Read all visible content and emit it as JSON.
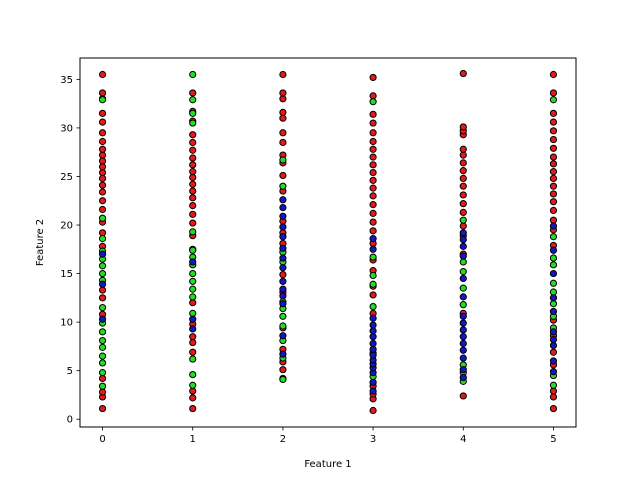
{
  "chart_data": {
    "type": "scatter",
    "title": "",
    "xlabel": "Feature 1",
    "ylabel": "Feature 2",
    "xlim": [
      -0.25,
      5.25
    ],
    "ylim": [
      -0.8,
      37.2
    ],
    "xticks": [
      0,
      1,
      2,
      3,
      4,
      5
    ],
    "yticks": [
      0,
      5,
      10,
      15,
      20,
      25,
      30,
      35
    ],
    "grid": false,
    "legend": "none",
    "marker_edge_color": "#000000",
    "series": [
      {
        "color": "#e31a1c",
        "points": [
          [
            0,
            1.1
          ],
          [
            0,
            2.3
          ],
          [
            0,
            2.8
          ],
          [
            0,
            4.2
          ],
          [
            0,
            10.8
          ],
          [
            0,
            12.5
          ],
          [
            0,
            13.3
          ],
          [
            0,
            17.8
          ],
          [
            0,
            19.2
          ],
          [
            0,
            20.3
          ],
          [
            0,
            21.6
          ],
          [
            0,
            22.5
          ],
          [
            0,
            23.4
          ],
          [
            0,
            24.1
          ],
          [
            0,
            24.8
          ],
          [
            0,
            25.4
          ],
          [
            0,
            26.0
          ],
          [
            0,
            26.6
          ],
          [
            0,
            27.2
          ],
          [
            0,
            27.8
          ],
          [
            0,
            28.6
          ],
          [
            0,
            29.5
          ],
          [
            0,
            30.6
          ],
          [
            0,
            31.5
          ],
          [
            0,
            33.0
          ],
          [
            0,
            33.6
          ],
          [
            0,
            35.5
          ],
          [
            1,
            1.1
          ],
          [
            1,
            2.2
          ],
          [
            1,
            2.9
          ],
          [
            1,
            6.9
          ],
          [
            1,
            7.9
          ],
          [
            1,
            8.5
          ],
          [
            1,
            9.8
          ],
          [
            1,
            12.0
          ],
          [
            1,
            17.5
          ],
          [
            1,
            18.9
          ],
          [
            1,
            20.2
          ],
          [
            1,
            21.1
          ],
          [
            1,
            22.0
          ],
          [
            1,
            22.8
          ],
          [
            1,
            23.5
          ],
          [
            1,
            24.2
          ],
          [
            1,
            24.9
          ],
          [
            1,
            25.5
          ],
          [
            1,
            26.2
          ],
          [
            1,
            26.9
          ],
          [
            1,
            27.7
          ],
          [
            1,
            28.5
          ],
          [
            1,
            29.3
          ],
          [
            1,
            30.7
          ],
          [
            1,
            31.7
          ],
          [
            1,
            33.6
          ],
          [
            2,
            4.2
          ],
          [
            2,
            5.1
          ],
          [
            2,
            5.9
          ],
          [
            2,
            7.2
          ],
          [
            2,
            9.4
          ],
          [
            2,
            13.1
          ],
          [
            2,
            14.9
          ],
          [
            2,
            18.1
          ],
          [
            2,
            19.2
          ],
          [
            2,
            20.4
          ],
          [
            2,
            23.5
          ],
          [
            2,
            25.1
          ],
          [
            2,
            26.4
          ],
          [
            2,
            27.2
          ],
          [
            2,
            28.5
          ],
          [
            2,
            29.5
          ],
          [
            2,
            31.0
          ],
          [
            2,
            31.6
          ],
          [
            2,
            33.0
          ],
          [
            2,
            33.6
          ],
          [
            2,
            35.5
          ],
          [
            3,
            0.9
          ],
          [
            3,
            2.1
          ],
          [
            3,
            2.6
          ],
          [
            3,
            3.4
          ],
          [
            3,
            10.9
          ],
          [
            3,
            12.8
          ],
          [
            3,
            13.7
          ],
          [
            3,
            15.3
          ],
          [
            3,
            16.4
          ],
          [
            3,
            18.1
          ],
          [
            3,
            19.4
          ],
          [
            3,
            20.3
          ],
          [
            3,
            21.2
          ],
          [
            3,
            22.1
          ],
          [
            3,
            23.0
          ],
          [
            3,
            23.8
          ],
          [
            3,
            24.6
          ],
          [
            3,
            25.4
          ],
          [
            3,
            26.2
          ],
          [
            3,
            27.0
          ],
          [
            3,
            27.8
          ],
          [
            3,
            28.6
          ],
          [
            3,
            29.5
          ],
          [
            3,
            30.5
          ],
          [
            3,
            31.4
          ],
          [
            3,
            33.3
          ],
          [
            3,
            35.2
          ],
          [
            4,
            2.4
          ],
          [
            4,
            10.9
          ],
          [
            4,
            17.0
          ],
          [
            4,
            18.9
          ],
          [
            4,
            19.9
          ],
          [
            4,
            21.3
          ],
          [
            4,
            22.2
          ],
          [
            4,
            23.1
          ],
          [
            4,
            24.0
          ],
          [
            4,
            24.8
          ],
          [
            4,
            25.6
          ],
          [
            4,
            26.4
          ],
          [
            4,
            27.2
          ],
          [
            4,
            27.8
          ],
          [
            4,
            29.3
          ],
          [
            4,
            29.7
          ],
          [
            4,
            30.1
          ],
          [
            4,
            35.6
          ],
          [
            5,
            1.1
          ],
          [
            5,
            2.3
          ],
          [
            5,
            2.9
          ],
          [
            5,
            5.6
          ],
          [
            5,
            6.9
          ],
          [
            5,
            8.6
          ],
          [
            5,
            10.2
          ],
          [
            5,
            17.9
          ],
          [
            5,
            19.5
          ],
          [
            5,
            20.5
          ],
          [
            5,
            21.5
          ],
          [
            5,
            22.4
          ],
          [
            5,
            23.2
          ],
          [
            5,
            24.0
          ],
          [
            5,
            24.8
          ],
          [
            5,
            25.5
          ],
          [
            5,
            26.3
          ],
          [
            5,
            27.0
          ],
          [
            5,
            27.9
          ],
          [
            5,
            28.8
          ],
          [
            5,
            29.7
          ],
          [
            5,
            30.6
          ],
          [
            5,
            31.5
          ],
          [
            5,
            33.6
          ],
          [
            5,
            35.5
          ]
        ]
      },
      {
        "color": "#22dd22",
        "points": [
          [
            0,
            3.4
          ],
          [
            0,
            4.8
          ],
          [
            0,
            5.8
          ],
          [
            0,
            6.5
          ],
          [
            0,
            7.4
          ],
          [
            0,
            8.1
          ],
          [
            0,
            9.0
          ],
          [
            0,
            9.9
          ],
          [
            0,
            11.5
          ],
          [
            0,
            14.3
          ],
          [
            0,
            15.0
          ],
          [
            0,
            15.8
          ],
          [
            0,
            16.5
          ],
          [
            0,
            17.3
          ],
          [
            0,
            18.6
          ],
          [
            0,
            20.7
          ],
          [
            0,
            32.9
          ],
          [
            1,
            3.5
          ],
          [
            1,
            4.6
          ],
          [
            1,
            6.2
          ],
          [
            1,
            10.9
          ],
          [
            1,
            12.6
          ],
          [
            1,
            13.4
          ],
          [
            1,
            14.2
          ],
          [
            1,
            15.0
          ],
          [
            1,
            15.9
          ],
          [
            1,
            16.7
          ],
          [
            1,
            17.4
          ],
          [
            1,
            19.3
          ],
          [
            1,
            30.5
          ],
          [
            1,
            31.5
          ],
          [
            1,
            32.9
          ],
          [
            1,
            35.5
          ],
          [
            2,
            4.1
          ],
          [
            2,
            6.3
          ],
          [
            2,
            8.1
          ],
          [
            2,
            9.6
          ],
          [
            2,
            10.6
          ],
          [
            2,
            11.4
          ],
          [
            2,
            12.1
          ],
          [
            2,
            16.2
          ],
          [
            2,
            17.2
          ],
          [
            2,
            24.0
          ],
          [
            2,
            26.7
          ],
          [
            3,
            4.4
          ],
          [
            3,
            6.8
          ],
          [
            3,
            11.6
          ],
          [
            3,
            13.9
          ],
          [
            3,
            14.8
          ],
          [
            3,
            16.7
          ],
          [
            3,
            32.7
          ],
          [
            4,
            3.9
          ],
          [
            4,
            4.8
          ],
          [
            4,
            5.6
          ],
          [
            4,
            11.8
          ],
          [
            4,
            13.5
          ],
          [
            4,
            15.2
          ],
          [
            4,
            16.2
          ],
          [
            4,
            20.5
          ],
          [
            5,
            3.5
          ],
          [
            5,
            4.5
          ],
          [
            5,
            9.4
          ],
          [
            5,
            10.6
          ],
          [
            5,
            11.9
          ],
          [
            5,
            13.1
          ],
          [
            5,
            14.0
          ],
          [
            5,
            15.9
          ],
          [
            5,
            16.6
          ],
          [
            5,
            18.8
          ],
          [
            5,
            32.9
          ]
        ]
      },
      {
        "color": "#1515c8",
        "points": [
          [
            0,
            10.3
          ],
          [
            0,
            13.9
          ],
          [
            0,
            17.0
          ],
          [
            1,
            9.3
          ],
          [
            1,
            10.3
          ],
          [
            1,
            16.2
          ],
          [
            2,
            6.7
          ],
          [
            2,
            8.6
          ],
          [
            2,
            11.9
          ],
          [
            2,
            12.7
          ],
          [
            2,
            13.4
          ],
          [
            2,
            14.2
          ],
          [
            2,
            15.6
          ],
          [
            2,
            16.6
          ],
          [
            2,
            17.6
          ],
          [
            2,
            18.8
          ],
          [
            2,
            19.8
          ],
          [
            2,
            20.9
          ],
          [
            2,
            21.8
          ],
          [
            2,
            22.6
          ],
          [
            3,
            2.9
          ],
          [
            3,
            3.8
          ],
          [
            3,
            4.8
          ],
          [
            3,
            5.3
          ],
          [
            3,
            5.7
          ],
          [
            3,
            6.1
          ],
          [
            3,
            6.6
          ],
          [
            3,
            7.2
          ],
          [
            3,
            7.8
          ],
          [
            3,
            8.5
          ],
          [
            3,
            9.1
          ],
          [
            3,
            9.7
          ],
          [
            3,
            10.4
          ],
          [
            3,
            17.5
          ],
          [
            3,
            18.6
          ],
          [
            4,
            4.3
          ],
          [
            4,
            5.1
          ],
          [
            4,
            6.3
          ],
          [
            4,
            7.1
          ],
          [
            4,
            7.8
          ],
          [
            4,
            8.5
          ],
          [
            4,
            9.2
          ],
          [
            4,
            9.9
          ],
          [
            4,
            10.6
          ],
          [
            4,
            12.6
          ],
          [
            4,
            14.5
          ],
          [
            4,
            16.8
          ],
          [
            4,
            17.8
          ],
          [
            4,
            18.5
          ],
          [
            4,
            19.2
          ],
          [
            5,
            4.9
          ],
          [
            5,
            6.0
          ],
          [
            5,
            7.6
          ],
          [
            5,
            8.2
          ],
          [
            5,
            9.0
          ],
          [
            5,
            11.1
          ],
          [
            5,
            12.5
          ],
          [
            5,
            15.0
          ],
          [
            5,
            17.4
          ],
          [
            5,
            19.9
          ]
        ]
      }
    ]
  }
}
